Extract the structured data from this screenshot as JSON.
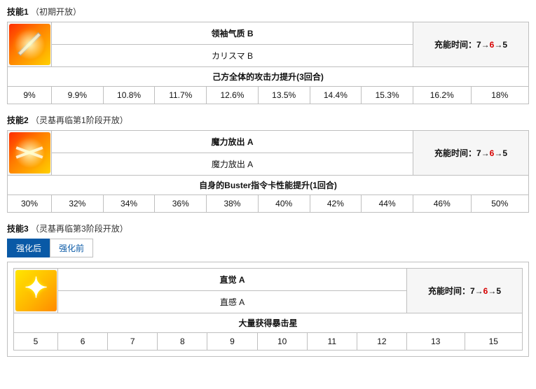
{
  "skills": [
    {
      "title_prefix": "技能1",
      "unlock": "（初期开放）",
      "name_cn": "领袖气质 B",
      "name_jp": "カリスマ B",
      "effect": "己方全体的攻击力提升(3回合)",
      "cooldown_label": "充能时间：",
      "cooldown": [
        "7",
        "→",
        "6",
        "→",
        "5"
      ],
      "values": [
        "9%",
        "9.9%",
        "10.8%",
        "11.7%",
        "12.6%",
        "13.5%",
        "14.4%",
        "15.3%",
        "16.2%",
        "18%"
      ],
      "value_red_idx": [
        5,
        9
      ],
      "icon_class": "icon-red",
      "icon_deco": "sword"
    },
    {
      "title_prefix": "技能2",
      "unlock": "（灵基再临第1阶段开放）",
      "name_cn": "魔力放出 A",
      "name_jp": "魔力放出 A",
      "effect": "自身的Buster指令卡性能提升(1回合)",
      "cooldown_label": "充能时间：",
      "cooldown": [
        "7",
        "→",
        "6",
        "→",
        "5"
      ],
      "values": [
        "30%",
        "32%",
        "34%",
        "36%",
        "38%",
        "40%",
        "42%",
        "44%",
        "46%",
        "50%"
      ],
      "value_red_idx": [
        5,
        9
      ],
      "icon_class": "icon-red",
      "icon_deco": "burst"
    },
    {
      "title_prefix": "技能3",
      "unlock": "（灵基再临第3阶段开放）",
      "name_cn": "直觉 A",
      "name_jp": "直感 A",
      "effect": "大量获得暴击星",
      "cooldown_label": "充能时间：",
      "cooldown": [
        "7",
        "→",
        "6",
        "→",
        "5"
      ],
      "values": [
        "5",
        "6",
        "7",
        "8",
        "9",
        "10",
        "11",
        "12",
        "13",
        "15"
      ],
      "value_red_idx": [
        5,
        9
      ],
      "icon_class": "icon-yellow",
      "icon_deco": "",
      "tabs": [
        "强化后",
        "强化前"
      ],
      "active_tab": 0
    }
  ]
}
